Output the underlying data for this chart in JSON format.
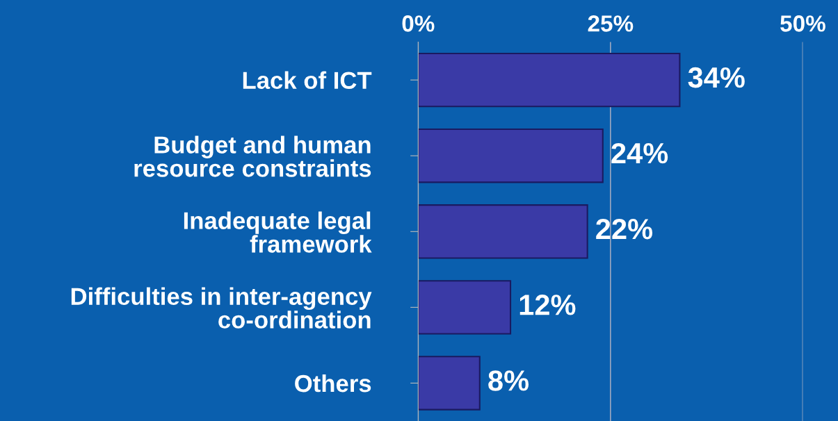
{
  "chart_data": {
    "type": "bar",
    "orientation": "horizontal",
    "categories": [
      "Lack of ICT",
      "Budget and human\nresource constraints",
      "Inadequate legal\nframework",
      "Difficulties in inter-agency\nco-ordination",
      "Others"
    ],
    "values": [
      34,
      24,
      22,
      12,
      8
    ],
    "value_labels": [
      "34%",
      "24%",
      "22%",
      "12%",
      "8%"
    ],
    "color": "#3a3aa6",
    "xlim": [
      0,
      50
    ],
    "xticks": [
      {
        "value": 0,
        "label": "0%"
      },
      {
        "value": 25,
        "label": "25%"
      },
      {
        "value": 50,
        "label": "50%"
      }
    ],
    "grid": "x"
  }
}
